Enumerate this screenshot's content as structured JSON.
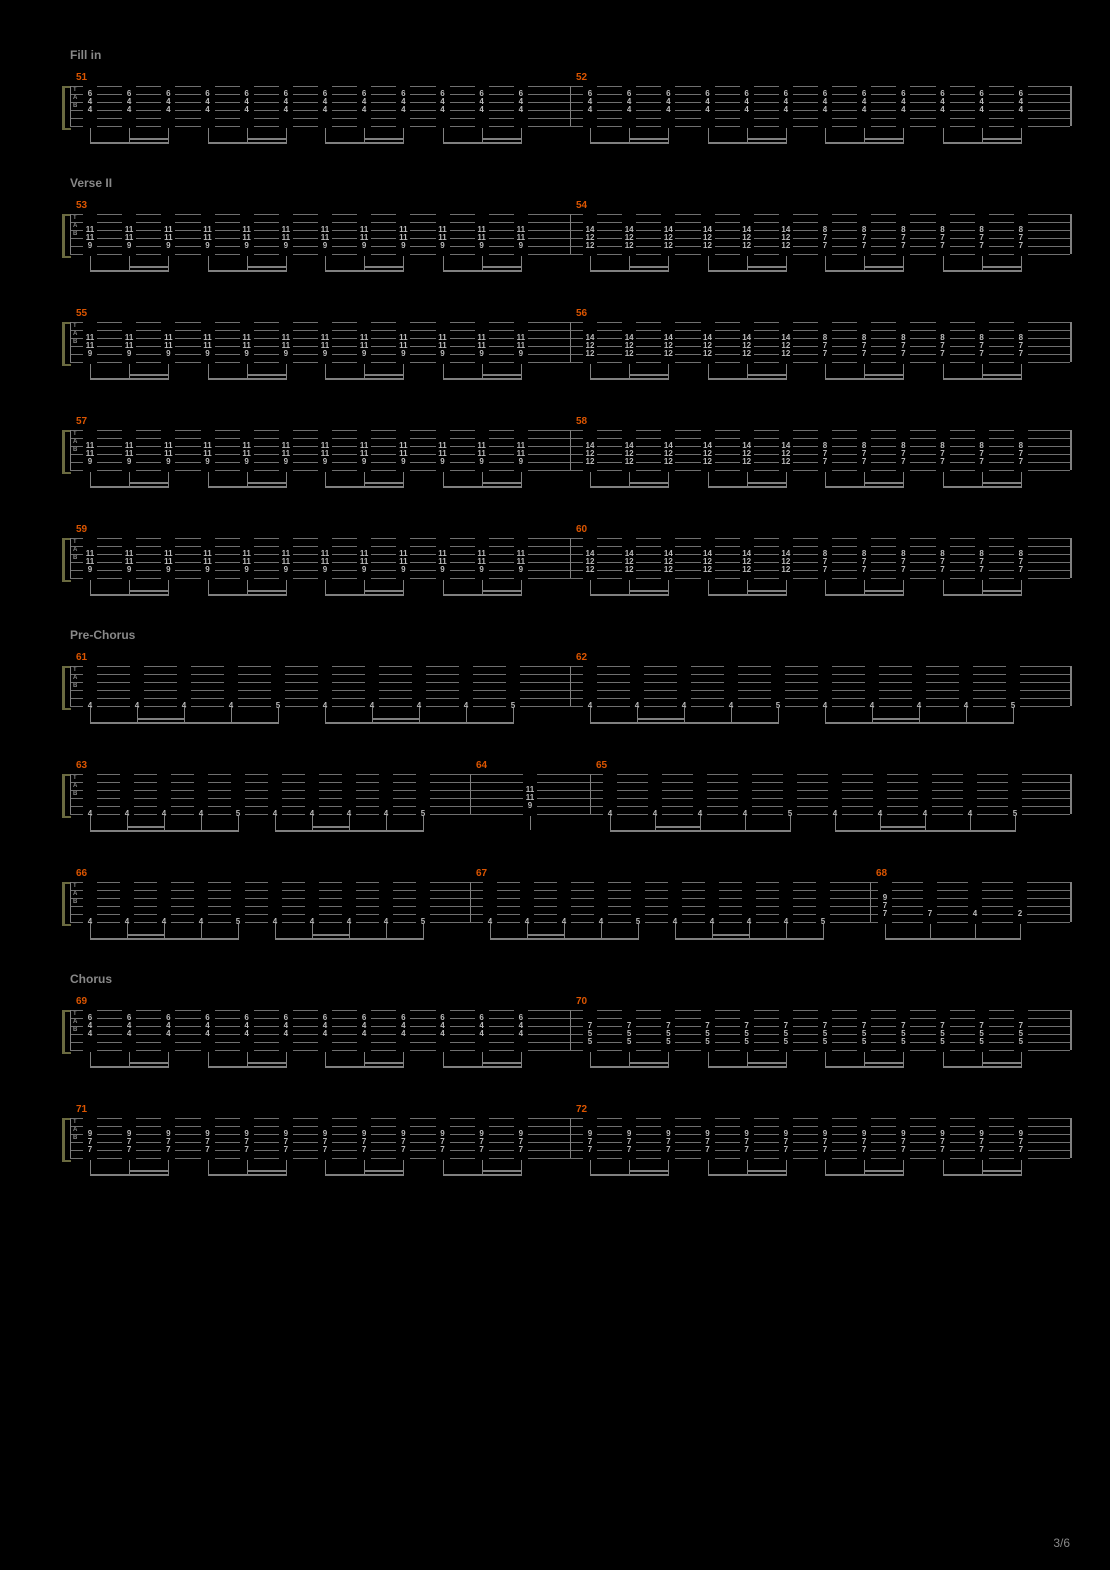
{
  "page_number": "3/6",
  "colors": {
    "background": "#000000",
    "staff_line": "#707070",
    "measure_number": "#dc5500",
    "note_text": "#bbbbbb",
    "section_label": "#888888",
    "bracket": "#6a6a40"
  },
  "tab_labels": [
    "T",
    "A",
    "B"
  ],
  "systems": [
    {
      "section": "Fill in",
      "measures": [
        {
          "num": "51",
          "width": 0.5,
          "pattern": "A",
          "notes": [
            {
              "strings": [
                1,
                2,
                3
              ],
              "frets": [
                "6",
                "4",
                "4"
              ]
            }
          ],
          "beats": 12
        },
        {
          "num": "52",
          "width": 0.5,
          "pattern": "A",
          "notes": [
            {
              "strings": [
                1,
                2,
                3
              ],
              "frets": [
                "6",
                "4",
                "4"
              ]
            }
          ],
          "beats": 12,
          "end_rest": true
        }
      ]
    },
    {
      "section": "Verse II",
      "measures": [
        {
          "num": "53",
          "width": 0.5,
          "pattern": "B",
          "notes": [
            {
              "strings": [
                2,
                3,
                4
              ],
              "frets": [
                "11",
                "11",
                "9"
              ]
            }
          ],
          "beats": 12
        },
        {
          "num": "54",
          "width": 0.5,
          "pattern": "C",
          "groups": [
            {
              "cols": 6,
              "frets": [
                "14",
                "12",
                "12"
              ],
              "strings": [
                2,
                3,
                4
              ]
            },
            {
              "cols": 6,
              "frets": [
                "8",
                "7",
                "7"
              ],
              "strings": [
                2,
                3,
                4
              ]
            }
          ]
        }
      ]
    },
    {
      "section": null,
      "measures": [
        {
          "num": "55",
          "width": 0.5,
          "pattern": "B",
          "notes": [
            {
              "strings": [
                2,
                3,
                4
              ],
              "frets": [
                "11",
                "11",
                "9"
              ]
            }
          ],
          "beats": 12
        },
        {
          "num": "56",
          "width": 0.5,
          "pattern": "C",
          "groups": [
            {
              "cols": 6,
              "frets": [
                "14",
                "12",
                "12"
              ],
              "strings": [
                2,
                3,
                4
              ]
            },
            {
              "cols": 6,
              "frets": [
                "8",
                "7",
                "7"
              ],
              "strings": [
                2,
                3,
                4
              ]
            }
          ]
        }
      ]
    },
    {
      "section": null,
      "measures": [
        {
          "num": "57",
          "width": 0.5,
          "pattern": "B",
          "notes": [
            {
              "strings": [
                2,
                3,
                4
              ],
              "frets": [
                "11",
                "11",
                "9"
              ]
            }
          ],
          "beats": 12
        },
        {
          "num": "58",
          "width": 0.5,
          "pattern": "C",
          "groups": [
            {
              "cols": 6,
              "frets": [
                "14",
                "12",
                "12"
              ],
              "strings": [
                2,
                3,
                4
              ]
            },
            {
              "cols": 6,
              "frets": [
                "8",
                "7",
                "7"
              ],
              "strings": [
                2,
                3,
                4
              ]
            }
          ]
        }
      ]
    },
    {
      "section": null,
      "measures": [
        {
          "num": "59",
          "width": 0.5,
          "pattern": "B",
          "notes": [
            {
              "strings": [
                2,
                3,
                4
              ],
              "frets": [
                "11",
                "11",
                "9"
              ]
            }
          ],
          "beats": 12
        },
        {
          "num": "60",
          "width": 0.5,
          "pattern": "C",
          "groups": [
            {
              "cols": 6,
              "frets": [
                "14",
                "12",
                "12"
              ],
              "strings": [
                2,
                3,
                4
              ]
            },
            {
              "cols": 6,
              "frets": [
                "8",
                "7",
                "7"
              ],
              "strings": [
                2,
                3,
                4
              ]
            }
          ],
          "end_rest": true
        }
      ]
    },
    {
      "section": "Pre-Chorus",
      "measures": [
        {
          "num": "61",
          "width": 0.5,
          "pattern": "D",
          "seq": [
            "4",
            "4",
            "4",
            "4",
            "5",
            "4",
            "4",
            "4",
            "4",
            "5"
          ],
          "string": 5
        },
        {
          "num": "62",
          "width": 0.5,
          "pattern": "D",
          "seq": [
            "4",
            "4",
            "4",
            "4",
            "5",
            "4",
            "4",
            "4",
            "4",
            "5"
          ],
          "string": 5
        }
      ]
    },
    {
      "section": null,
      "measures": [
        {
          "num": "63",
          "width": 0.4,
          "pattern": "D",
          "seq": [
            "4",
            "4",
            "4",
            "4",
            "5",
            "4",
            "4",
            "4",
            "4",
            "5"
          ],
          "string": 5
        },
        {
          "num": "64",
          "width": 0.12,
          "pattern": "E",
          "notes": [
            {
              "strings": [
                2,
                3,
                4
              ],
              "frets": [
                "11",
                "11",
                "9"
              ]
            }
          ]
        },
        {
          "num": "65",
          "width": 0.48,
          "pattern": "D",
          "seq": [
            "4",
            "4",
            "4",
            "4",
            "5",
            "4",
            "4",
            "4",
            "4",
            "5"
          ],
          "string": 5
        }
      ]
    },
    {
      "section": null,
      "measures": [
        {
          "num": "66",
          "width": 0.4,
          "pattern": "D",
          "seq": [
            "4",
            "4",
            "4",
            "4",
            "5",
            "4",
            "4",
            "4",
            "4",
            "5"
          ],
          "string": 5
        },
        {
          "num": "67",
          "width": 0.4,
          "pattern": "D",
          "seq": [
            "4",
            "4",
            "4",
            "4",
            "5",
            "4",
            "4",
            "4",
            "4",
            "5"
          ],
          "string": 5
        },
        {
          "num": "68",
          "width": 0.2,
          "pattern": "F",
          "groups": [
            {
              "cols": 1,
              "frets": [
                "9",
                "7",
                "7"
              ],
              "strings": [
                2,
                3,
                4
              ]
            },
            {
              "cols": 1,
              "frets": [
                "7"
              ],
              "strings": [
                4
              ]
            },
            {
              "cols": 1,
              "frets": [
                "4"
              ],
              "strings": [
                4
              ]
            },
            {
              "cols": 1,
              "frets": [
                "2"
              ],
              "strings": [
                4
              ]
            }
          ],
          "end_rest": true
        }
      ]
    },
    {
      "section": "Chorus",
      "measures": [
        {
          "num": "69",
          "width": 0.5,
          "pattern": "A",
          "notes": [
            {
              "strings": [
                1,
                2,
                3
              ],
              "frets": [
                "6",
                "4",
                "4"
              ]
            }
          ],
          "beats": 12
        },
        {
          "num": "70",
          "width": 0.5,
          "pattern": "G",
          "notes": [
            {
              "strings": [
                2,
                3,
                4
              ],
              "frets": [
                "7",
                "5",
                "5"
              ]
            }
          ],
          "beats": 12
        }
      ]
    },
    {
      "section": null,
      "measures": [
        {
          "num": "71",
          "width": 0.5,
          "pattern": "G",
          "notes": [
            {
              "strings": [
                2,
                3,
                4
              ],
              "frets": [
                "9",
                "7",
                "7"
              ]
            }
          ],
          "beats": 12
        },
        {
          "num": "72",
          "width": 0.5,
          "pattern": "G",
          "notes": [
            {
              "strings": [
                2,
                3,
                4
              ],
              "frets": [
                "9",
                "7",
                "7"
              ]
            }
          ],
          "beats": 12
        }
      ]
    }
  ]
}
